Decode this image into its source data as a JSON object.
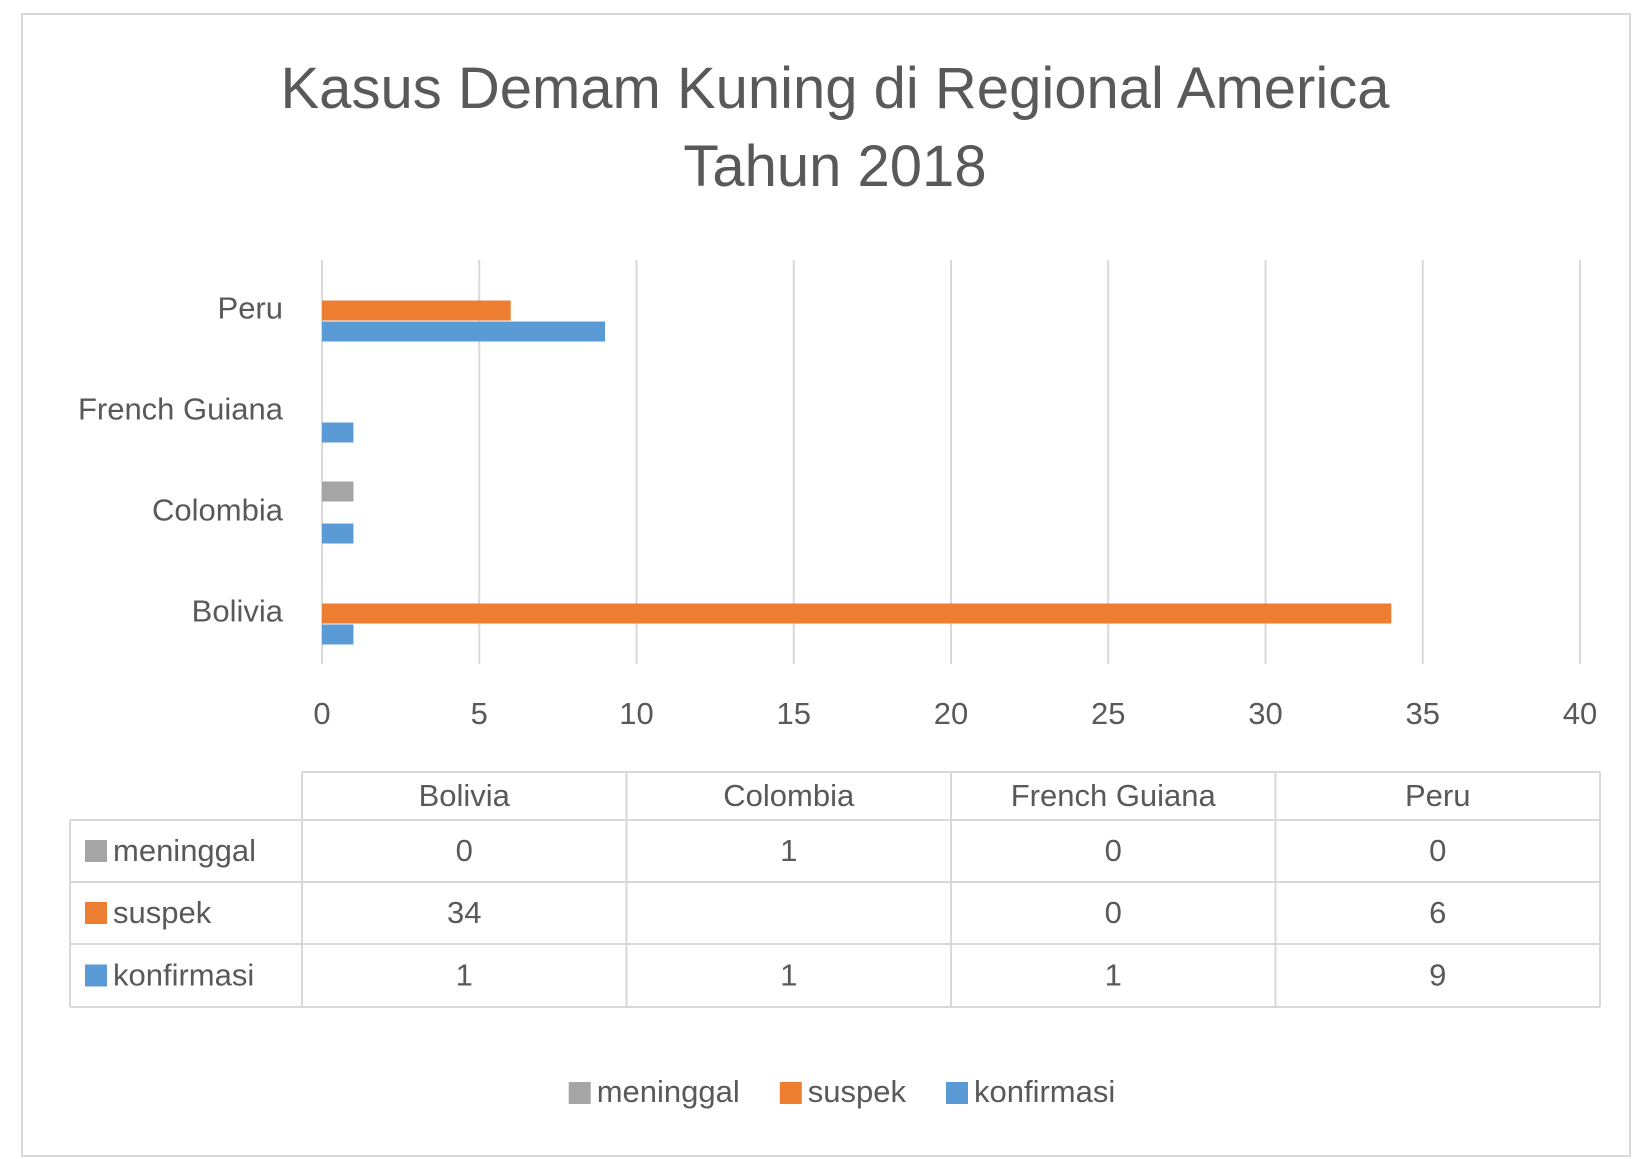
{
  "chart_data": {
    "type": "bar",
    "orientation": "horizontal",
    "title": "Kasus Demam Kuning di Regional America Tahun 2018",
    "categories": [
      "Bolivia",
      "Colombia",
      "French Guiana",
      "Peru"
    ],
    "series": [
      {
        "name": "meninggal",
        "color": "#a5a5a5",
        "values": [
          0,
          1,
          0,
          0
        ]
      },
      {
        "name": "suspek",
        "color": "#ed7d31",
        "values": [
          34,
          null,
          0,
          6
        ]
      },
      {
        "name": "konfirmasi",
        "color": "#5b9bd5",
        "values": [
          1,
          1,
          1,
          9
        ]
      }
    ],
    "xlim": [
      0,
      40
    ],
    "xticks": [
      0,
      5,
      10,
      15,
      20,
      25,
      30,
      35,
      40
    ],
    "grid": true,
    "legend": "bottom",
    "data_table": true
  }
}
